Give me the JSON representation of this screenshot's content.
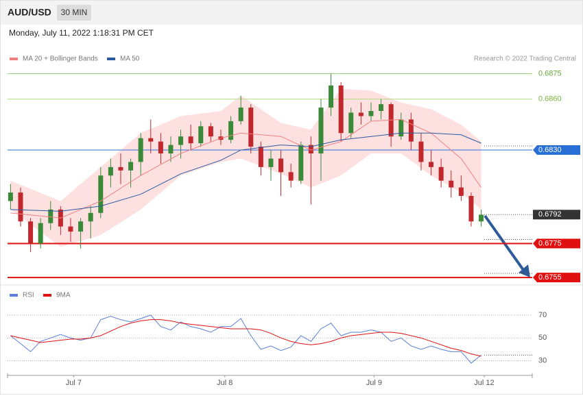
{
  "header": {
    "symbol": "AUD/USD",
    "interval": "30 MIN",
    "timestamp": "Monday, July 11, 2022 1:18:31 PM CET",
    "source": "Research © 2022 Trading Central"
  },
  "chart_data": [
    {
      "type": "candlestick",
      "xlim": [
        -0.3,
        52.1
      ],
      "ylim": [
        0.6751,
        0.6878
      ],
      "ohlc": [
        [
          0.68,
          0.681,
          0.6795,
          0.6805
        ],
        [
          0.6805,
          0.6808,
          0.6785,
          0.6788
        ],
        [
          0.6788,
          0.679,
          0.677,
          0.6775
        ],
        [
          0.6775,
          0.679,
          0.6772,
          0.6787
        ],
        [
          0.6787,
          0.68,
          0.6783,
          0.6795
        ],
        [
          0.6795,
          0.6797,
          0.678,
          0.6785
        ],
        [
          0.6785,
          0.679,
          0.6776,
          0.6782
        ],
        [
          0.6782,
          0.679,
          0.6772,
          0.6788
        ],
        [
          0.6788,
          0.6797,
          0.6778,
          0.6793
        ],
        [
          0.6793,
          0.682,
          0.679,
          0.6815
        ],
        [
          0.6815,
          0.6825,
          0.6808,
          0.682
        ],
        [
          0.682,
          0.6828,
          0.681,
          0.6818
        ],
        [
          0.6818,
          0.6825,
          0.6808,
          0.6823
        ],
        [
          0.6823,
          0.684,
          0.6815,
          0.6837
        ],
        [
          0.6837,
          0.6848,
          0.6828,
          0.6835
        ],
        [
          0.6835,
          0.684,
          0.6822,
          0.6828
        ],
        [
          0.6828,
          0.6838,
          0.6823,
          0.6833
        ],
        [
          0.6833,
          0.6842,
          0.6825,
          0.6838
        ],
        [
          0.6838,
          0.6845,
          0.683,
          0.6834
        ],
        [
          0.6834,
          0.6847,
          0.6832,
          0.6844
        ],
        [
          0.6844,
          0.6846,
          0.6835,
          0.6838
        ],
        [
          0.6838,
          0.6842,
          0.6833,
          0.6836
        ],
        [
          0.6836,
          0.685,
          0.6834,
          0.6847
        ],
        [
          0.6847,
          0.6862,
          0.6845,
          0.6855
        ],
        [
          0.6855,
          0.6857,
          0.6828,
          0.6832
        ],
        [
          0.6832,
          0.6835,
          0.6815,
          0.682
        ],
        [
          0.682,
          0.683,
          0.6812,
          0.6825
        ],
        [
          0.6825,
          0.683,
          0.6803,
          0.6817
        ],
        [
          0.6817,
          0.6822,
          0.6808,
          0.6812
        ],
        [
          0.6812,
          0.6835,
          0.681,
          0.6833
        ],
        [
          0.6833,
          0.6838,
          0.6798,
          0.6828
        ],
        [
          0.6828,
          0.686,
          0.6812,
          0.6855
        ],
        [
          0.6855,
          0.6875,
          0.685,
          0.6868
        ],
        [
          0.6868,
          0.687,
          0.6835,
          0.684
        ],
        [
          0.684,
          0.6855,
          0.6837,
          0.6852
        ],
        [
          0.6852,
          0.6858,
          0.6845,
          0.685
        ],
        [
          0.685,
          0.6858,
          0.6847,
          0.6853
        ],
        [
          0.6853,
          0.686,
          0.6848,
          0.6857
        ],
        [
          0.6857,
          0.6858,
          0.6832,
          0.6838
        ],
        [
          0.6838,
          0.6852,
          0.6836,
          0.6848
        ],
        [
          0.6848,
          0.6852,
          0.683,
          0.6835
        ],
        [
          0.6835,
          0.684,
          0.6818,
          0.6823
        ],
        [
          0.6823,
          0.683,
          0.6815,
          0.682
        ],
        [
          0.682,
          0.6825,
          0.6808,
          0.6812
        ],
        [
          0.6812,
          0.6818,
          0.6802,
          0.6808
        ],
        [
          0.6808,
          0.6815,
          0.68,
          0.6803
        ],
        [
          0.6803,
          0.6805,
          0.6785,
          0.6788
        ],
        [
          0.6788,
          0.6795,
          0.6785,
          0.6792
        ]
      ],
      "up_color": "#3a8a3a",
      "down_color": "#c0282d",
      "series": [
        {
          "name": "MA 20 + Bollinger Bands",
          "color": "#f08080",
          "x": [
            0,
            5,
            9,
            13,
            17,
            21,
            23,
            27,
            30,
            33,
            36,
            39,
            42,
            45,
            47
          ],
          "values": [
            0.6793,
            0.679,
            0.68,
            0.6815,
            0.6828,
            0.6837,
            0.684,
            0.6838,
            0.683,
            0.6835,
            0.6847,
            0.6848,
            0.684,
            0.6825,
            0.6808
          ]
        },
        {
          "name": "MA 50",
          "color": "#2c5aa0",
          "x": [
            0,
            5,
            9,
            13,
            17,
            21,
            23,
            27,
            30,
            33,
            36,
            39,
            42,
            45,
            47
          ],
          "values": [
            0.6795,
            0.6794,
            0.6797,
            0.6804,
            0.6816,
            0.6824,
            0.683,
            0.6833,
            0.6832,
            0.6836,
            0.6838,
            0.684,
            0.684,
            0.6839,
            0.6834
          ]
        }
      ],
      "bands": {
        "color": "#fde0e0",
        "upper": [
          0.6812,
          0.68,
          0.682,
          0.684,
          0.685,
          0.6853,
          0.6862,
          0.6846,
          0.6842,
          0.6866,
          0.6865,
          0.6858,
          0.6854,
          0.6845,
          0.6835
        ],
        "lower": [
          0.6795,
          0.6773,
          0.678,
          0.6795,
          0.6815,
          0.6823,
          0.6825,
          0.6816,
          0.6808,
          0.6815,
          0.6828,
          0.6828,
          0.6815,
          0.6805,
          0.6795
        ]
      },
      "levels": [
        {
          "value": 0.6875,
          "label": "0.6875",
          "color": "#9bd07a",
          "style": "text"
        },
        {
          "value": 0.686,
          "label": "0.6860",
          "color": "#b5d98a",
          "style": "text"
        },
        {
          "value": 0.683,
          "label": "0.6830",
          "color": "#2a6fd6",
          "style": "box"
        },
        {
          "value": 0.6792,
          "label": "0.6792",
          "color": "#333333",
          "style": "current"
        },
        {
          "value": 0.6775,
          "label": "0.6775",
          "color": "#e01010",
          "style": "box"
        },
        {
          "value": 0.6755,
          "label": "0.6755",
          "color": "#e01010",
          "style": "box"
        }
      ]
    },
    {
      "type": "line",
      "xlim": [
        -0.3,
        52.1
      ],
      "ylim": [
        19,
        79
      ],
      "yticks": [
        70,
        50,
        30
      ],
      "xticks": [
        {
          "value": 6.3,
          "label": "Jul 7"
        },
        {
          "value": 21.4,
          "label": "Jul 8"
        },
        {
          "value": 36.3,
          "label": "Jul 9"
        },
        {
          "value": 47.3,
          "label": "Jul 12"
        }
      ],
      "series": [
        {
          "name": "RSI",
          "color": "#5b7fd6",
          "values": [
            52,
            45,
            38,
            47,
            50,
            53,
            50,
            48,
            50,
            66,
            69,
            66,
            64,
            67,
            70,
            60,
            57,
            64,
            60,
            58,
            55,
            60,
            60,
            67,
            52,
            40,
            43,
            39,
            42,
            52,
            47,
            58,
            63,
            52,
            55,
            55,
            57,
            55,
            47,
            50,
            43,
            40,
            43,
            40,
            38,
            38,
            28,
            35
          ]
        },
        {
          "name": "9MA",
          "color": "#e01010",
          "values": [
            52,
            50,
            48,
            46,
            47,
            48,
            49,
            49,
            50,
            52,
            56,
            60,
            63,
            65,
            66,
            66,
            65,
            63,
            62,
            61,
            60,
            59,
            58,
            58,
            58,
            57,
            54,
            50,
            47,
            45,
            44,
            45,
            47,
            50,
            52,
            53,
            54,
            55,
            55,
            54,
            52,
            50,
            47,
            44,
            41,
            39,
            36,
            34
          ]
        }
      ]
    }
  ]
}
